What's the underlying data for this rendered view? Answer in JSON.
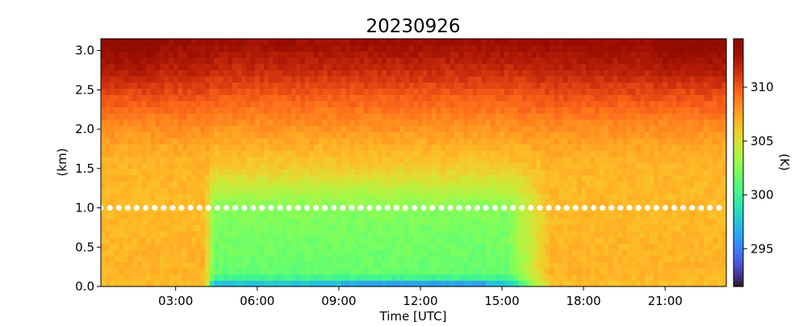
{
  "chart_data": {
    "type": "heatmap",
    "title": "20230926",
    "xlabel": "Time [UTC]",
    "ylabel": "(km)",
    "colorbar_label": "(K)",
    "colormap": "turbo",
    "xlim_hours": [
      0.25,
      23.25
    ],
    "ylim_km": [
      0.0,
      3.15
    ],
    "clim_K": [
      291.5,
      314.5
    ],
    "x_ticks": [
      {
        "hour": 3,
        "label": "03:00"
      },
      {
        "hour": 6,
        "label": "06:00"
      },
      {
        "hour": 9,
        "label": "09:00"
      },
      {
        "hour": 12,
        "label": "12:00"
      },
      {
        "hour": 15,
        "label": "15:00"
      },
      {
        "hour": 18,
        "label": "18:00"
      },
      {
        "hour": 21,
        "label": "21:00"
      }
    ],
    "y_ticks": [
      {
        "km": 0.0,
        "label": "0.0"
      },
      {
        "km": 0.5,
        "label": "0.5"
      },
      {
        "km": 1.0,
        "label": "1.0"
      },
      {
        "km": 1.5,
        "label": "1.5"
      },
      {
        "km": 2.0,
        "label": "2.0"
      },
      {
        "km": 2.5,
        "label": "2.5"
      },
      {
        "km": 3.0,
        "label": "3.0"
      }
    ],
    "colorbar_ticks": [
      {
        "K": 295,
        "label": "295"
      },
      {
        "K": 300,
        "label": "300"
      },
      {
        "K": 305,
        "label": "305"
      },
      {
        "K": 310,
        "label": "310"
      }
    ],
    "reference_line": {
      "height_km": 1.0,
      "style": "white dotted"
    },
    "temperature_profile_K": {
      "heights_km": [
        0.0,
        0.1,
        0.2,
        0.4,
        0.6,
        0.8,
        1.0,
        1.2,
        1.5,
        1.8,
        2.1,
        2.4,
        2.7,
        3.0,
        3.15
      ],
      "stable_night": [
        306.5,
        306.8,
        307.0,
        307.0,
        306.9,
        306.8,
        306.8,
        306.8,
        306.9,
        307.5,
        308.6,
        310.2,
        311.8,
        313.0,
        313.6
      ],
      "mixed_day": [
        296.0,
        300.0,
        301.5,
        301.8,
        302.0,
        302.2,
        302.5,
        303.8,
        306.0,
        307.2,
        308.4,
        309.8,
        311.4,
        312.8,
        313.4
      ]
    },
    "time_series_hours": {
      "mixing_onset": 4.1,
      "mixing_end": 16.0,
      "surface_cold_core": [
        9.0,
        14.5
      ]
    }
  }
}
